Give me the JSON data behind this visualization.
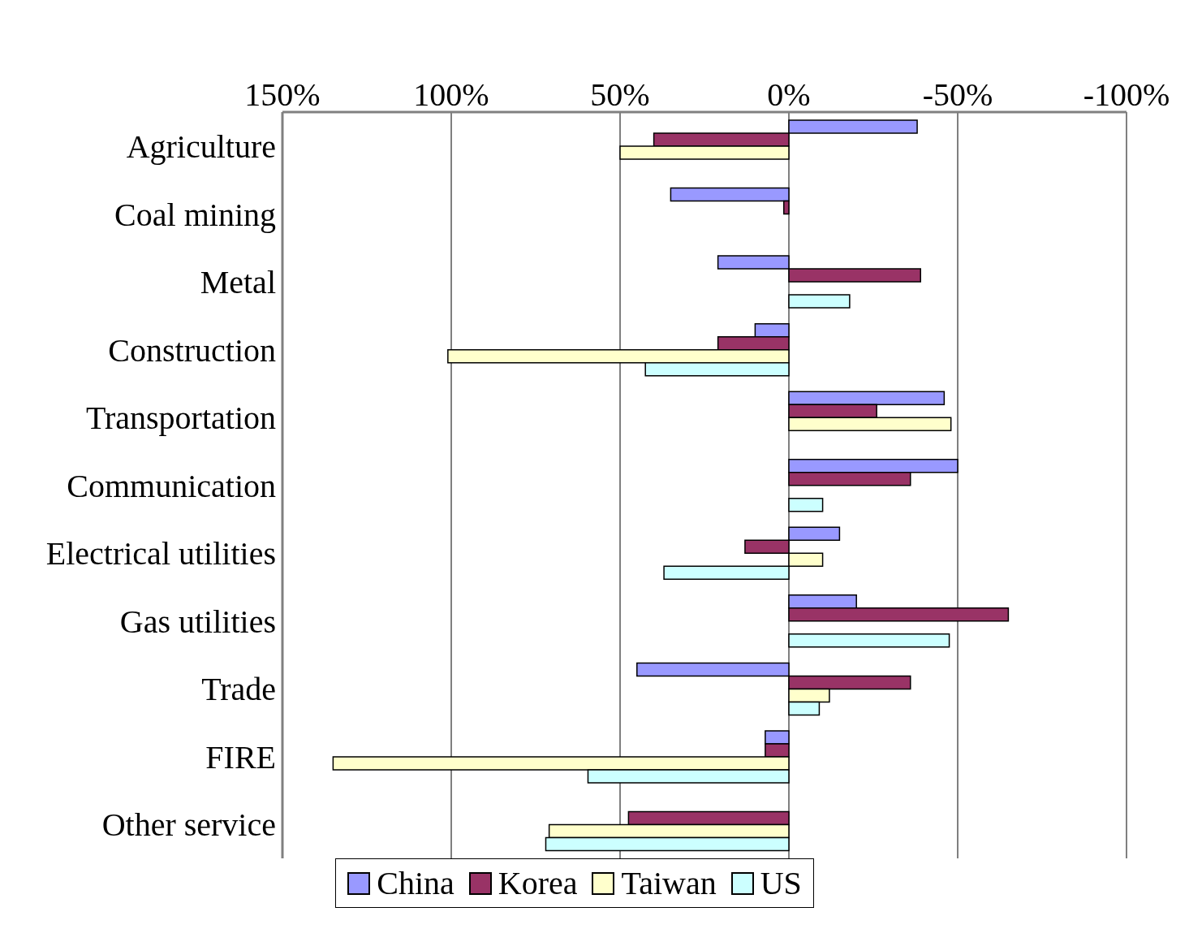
{
  "chart_data": {
    "type": "bar",
    "orientation": "horizontal",
    "categories": [
      "Agriculture",
      "Coal mining",
      "Metal",
      "Construction",
      "Transportation",
      "Communication",
      "Electrical utilities",
      "Gas utilities",
      "Trade",
      "FIRE",
      "Other service"
    ],
    "series": [
      {
        "name": "China",
        "color": "#9999ff",
        "values": [
          -38,
          35,
          21,
          10,
          -46,
          -50,
          -15,
          -20,
          45,
          7,
          null
        ]
      },
      {
        "name": "Korea",
        "color": "#993366",
        "values": [
          40,
          1.5,
          -39,
          21,
          -26,
          -36,
          13,
          -65,
          -36,
          7,
          47.5
        ]
      },
      {
        "name": "Taiwan",
        "color": "#ffffcc",
        "values": [
          50,
          null,
          null,
          101,
          -48,
          null,
          -10,
          null,
          -12,
          135,
          71
        ]
      },
      {
        "name": "US",
        "color": "#ccffff",
        "values": [
          null,
          null,
          -18,
          42.5,
          null,
          -10,
          37,
          -47.5,
          -9,
          59.5,
          72
        ]
      }
    ],
    "xlim": [
      150,
      -100
    ],
    "xticks": [
      {
        "value": 150,
        "label": "150%"
      },
      {
        "value": 100,
        "label": "100%"
      },
      {
        "value": 50,
        "label": "50%"
      },
      {
        "value": 0,
        "label": "0%"
      },
      {
        "value": -50,
        "label": "-50%"
      },
      {
        "value": -100,
        "label": "-100%"
      }
    ],
    "grid": "x",
    "legend": "bottom"
  }
}
